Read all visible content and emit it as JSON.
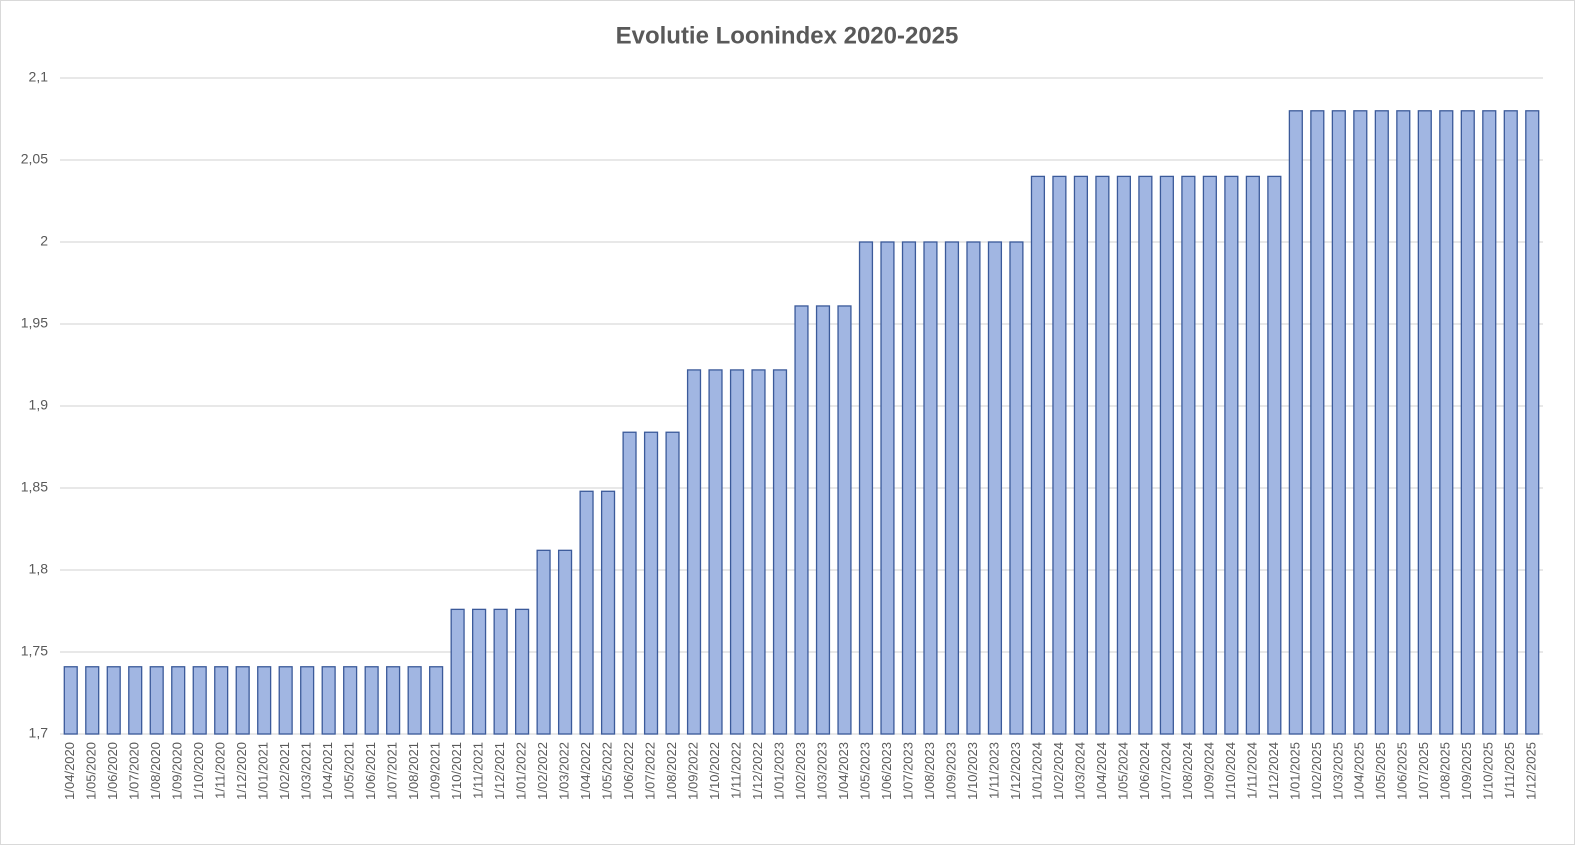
{
  "chart_data": {
    "type": "bar",
    "title": "Evolutie Loonindex 2020-2025",
    "categories": [
      "1/04/2020",
      "1/05/2020",
      "1/06/2020",
      "1/07/2020",
      "1/08/2020",
      "1/09/2020",
      "1/10/2020",
      "1/11/2020",
      "1/12/2020",
      "1/01/2021",
      "1/02/2021",
      "1/03/2021",
      "1/04/2021",
      "1/05/2021",
      "1/06/2021",
      "1/07/2021",
      "1/08/2021",
      "1/09/2021",
      "1/10/2021",
      "1/11/2021",
      "1/12/2021",
      "1/01/2022",
      "1/02/2022",
      "1/03/2022",
      "1/04/2022",
      "1/05/2022",
      "1/06/2022",
      "1/07/2022",
      "1/08/2022",
      "1/09/2022",
      "1/10/2022",
      "1/11/2022",
      "1/12/2022",
      "1/01/2023",
      "1/02/2023",
      "1/03/2023",
      "1/04/2023",
      "1/05/2023",
      "1/06/2023",
      "1/07/2023",
      "1/08/2023",
      "1/09/2023",
      "1/10/2023",
      "1/11/2023",
      "1/12/2023",
      "1/01/2024",
      "1/02/2024",
      "1/03/2024",
      "1/04/2024",
      "1/05/2024",
      "1/06/2024",
      "1/07/2024",
      "1/08/2024",
      "1/09/2024",
      "1/10/2024",
      "1/11/2024",
      "1/12/2024",
      "1/01/2025",
      "1/02/2025",
      "1/03/2025",
      "1/04/2025",
      "1/05/2025",
      "1/06/2025",
      "1/07/2025",
      "1/08/2025",
      "1/09/2025",
      "1/10/2025",
      "1/11/2025",
      "1/12/2025"
    ],
    "values": [
      1.741,
      1.741,
      1.741,
      1.741,
      1.741,
      1.741,
      1.741,
      1.741,
      1.741,
      1.741,
      1.741,
      1.741,
      1.741,
      1.741,
      1.741,
      1.741,
      1.741,
      1.741,
      1.776,
      1.776,
      1.776,
      1.776,
      1.812,
      1.812,
      1.848,
      1.848,
      1.884,
      1.884,
      1.884,
      1.922,
      1.922,
      1.922,
      1.922,
      1.922,
      1.961,
      1.961,
      1.961,
      2,
      2,
      2,
      2,
      2,
      2,
      2,
      2,
      2.04,
      2.04,
      2.04,
      2.04,
      2.04,
      2.04,
      2.04,
      2.04,
      2.04,
      2.04,
      2.04,
      2.04,
      2.08,
      2.08,
      2.08,
      2.08,
      2.08,
      2.08,
      2.08,
      2.08,
      2.08,
      2.08,
      2.08,
      2.08
    ],
    "color": "#a1b6e2",
    "edge_color": "#3b5a9a",
    "ylim": [
      1.7,
      2.1
    ],
    "yticks": [
      {
        "value": 1.7,
        "label": "1,7"
      },
      {
        "value": 1.75,
        "label": "1,75"
      },
      {
        "value": 1.8,
        "label": "1,8"
      },
      {
        "value": 1.85,
        "label": "1,85"
      },
      {
        "value": 1.9,
        "label": "1,9"
      },
      {
        "value": 1.95,
        "label": "1,95"
      },
      2,
      {
        "value": 2.05,
        "label": "2,05"
      },
      {
        "value": 2.1,
        "label": "2,1"
      }
    ],
    "grid": true
  }
}
